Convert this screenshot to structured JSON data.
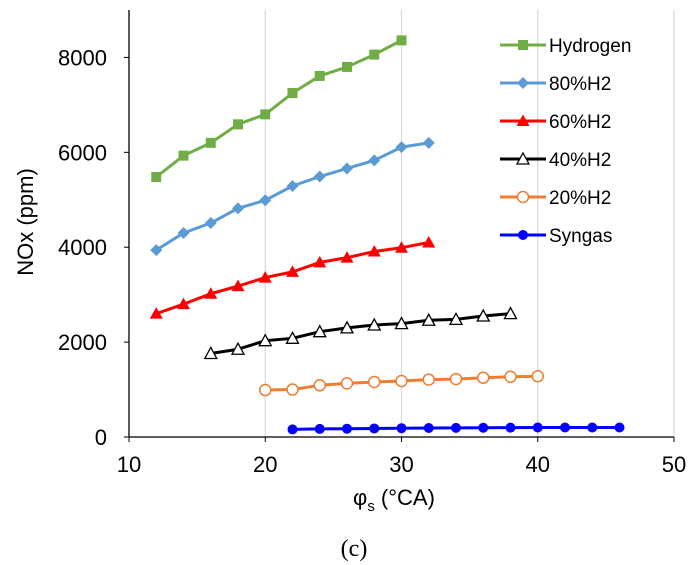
{
  "chart_data": {
    "type": "line",
    "xlabel_main": "φ",
    "xlabel_sub": "s",
    "xlabel_unit": " (°CA)",
    "ylabel": "NOx (ppm)",
    "xlim": [
      10,
      50
    ],
    "ylim": [
      0,
      9000
    ],
    "xticks": [
      10,
      20,
      30,
      40,
      50
    ],
    "yticks": [
      0,
      2000,
      4000,
      6000,
      8000
    ],
    "grid": "vertical",
    "legend_position": "top-right",
    "caption": "(c)",
    "series": [
      {
        "name": "Hydrogen",
        "color": "#70AD47",
        "marker": "square",
        "x": [
          12,
          14,
          16,
          18,
          20,
          22,
          24,
          26,
          28,
          30
        ],
        "y": [
          5480,
          5930,
          6200,
          6590,
          6800,
          7250,
          7610,
          7800,
          8060,
          8360
        ]
      },
      {
        "name": "80%H2",
        "color": "#5B9BD5",
        "marker": "diamond",
        "x": [
          12,
          14,
          16,
          18,
          20,
          22,
          24,
          26,
          28,
          30,
          32
        ],
        "y": [
          3940,
          4300,
          4510,
          4820,
          4990,
          5290,
          5490,
          5660,
          5830,
          6110,
          6200
        ]
      },
      {
        "name": "60%H2",
        "color": "#FF0000",
        "marker": "triangle-filled",
        "x": [
          12,
          14,
          16,
          18,
          20,
          22,
          24,
          26,
          28,
          30,
          32
        ],
        "y": [
          2600,
          2800,
          3020,
          3180,
          3360,
          3480,
          3680,
          3780,
          3910,
          3990,
          4100
        ]
      },
      {
        "name": "40%H2",
        "color": "#000000",
        "marker": "triangle-open",
        "x": [
          16,
          18,
          20,
          22,
          24,
          26,
          28,
          30,
          32,
          34,
          36,
          38
        ],
        "y": [
          1760,
          1850,
          2030,
          2080,
          2220,
          2300,
          2360,
          2390,
          2460,
          2480,
          2550,
          2600
        ]
      },
      {
        "name": "20%H2",
        "color": "#ED7D31",
        "marker": "circle-open",
        "x": [
          20,
          22,
          24,
          26,
          28,
          30,
          32,
          34,
          36,
          38,
          40
        ],
        "y": [
          990,
          1000,
          1090,
          1130,
          1160,
          1180,
          1210,
          1220,
          1250,
          1270,
          1280
        ]
      },
      {
        "name": "Syngas",
        "color": "#0000FF",
        "marker": "circle-filled",
        "x": [
          22,
          24,
          26,
          28,
          30,
          32,
          34,
          36,
          38,
          40,
          42,
          44,
          46
        ],
        "y": [
          160,
          170,
          175,
          180,
          185,
          190,
          192,
          195,
          198,
          200,
          200,
          200,
          200
        ]
      }
    ]
  }
}
